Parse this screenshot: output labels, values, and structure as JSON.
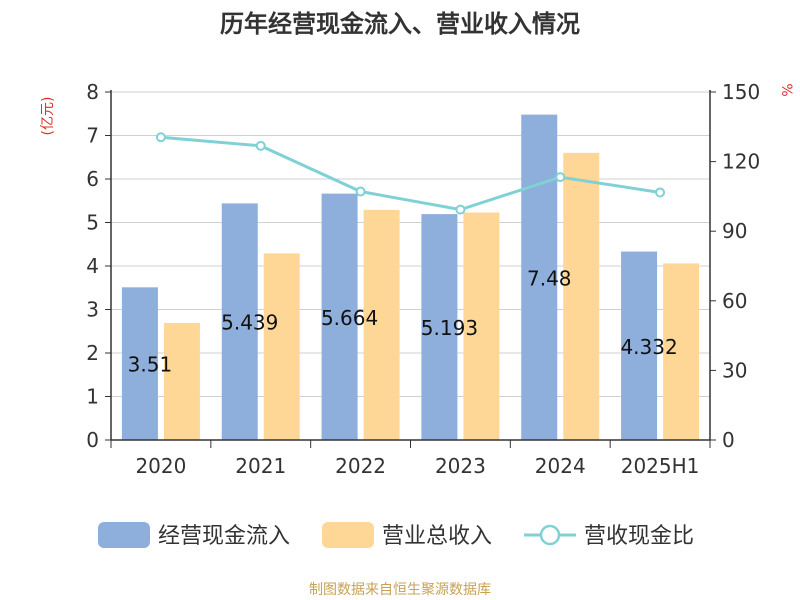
{
  "chart_data": {
    "type": "bar",
    "title": "历年经营现金流入、营业收入情况",
    "ylabel_left": "(亿元)",
    "ylabel_right": "%",
    "categories": [
      "2020",
      "2021",
      "2022",
      "2023",
      "2024",
      "2025H1"
    ],
    "ylim_left": [
      0,
      8
    ],
    "yticks_left": [
      "0",
      "1",
      "2",
      "3",
      "4",
      "5",
      "6",
      "7",
      "8"
    ],
    "ylim_right": [
      0,
      150
    ],
    "yticks_right": [
      "0",
      "30",
      "60",
      "90",
      "120",
      "150"
    ],
    "grid": true,
    "legend_position": "bottom",
    "series": [
      {
        "name": "经营现金流入",
        "type": "bar",
        "axis": "left",
        "color": "#8eaedb",
        "values": [
          3.51,
          5.439,
          5.664,
          5.193,
          7.48,
          4.332
        ],
        "labels": [
          "3.51",
          "5.439",
          "5.664",
          "5.193",
          "7.48",
          "4.332"
        ]
      },
      {
        "name": "营业总收入",
        "type": "bar",
        "axis": "left",
        "color": "#fed797",
        "values": [
          2.69,
          4.29,
          5.29,
          5.23,
          6.6,
          4.06
        ]
      },
      {
        "name": "营收现金比",
        "type": "line",
        "axis": "right",
        "color": "#80d1d6",
        "values": [
          130.5,
          126.8,
          107.1,
          99.3,
          113.3,
          106.7
        ]
      }
    ]
  },
  "footer": {
    "source": "制图数据来自恒生聚源数据库"
  }
}
